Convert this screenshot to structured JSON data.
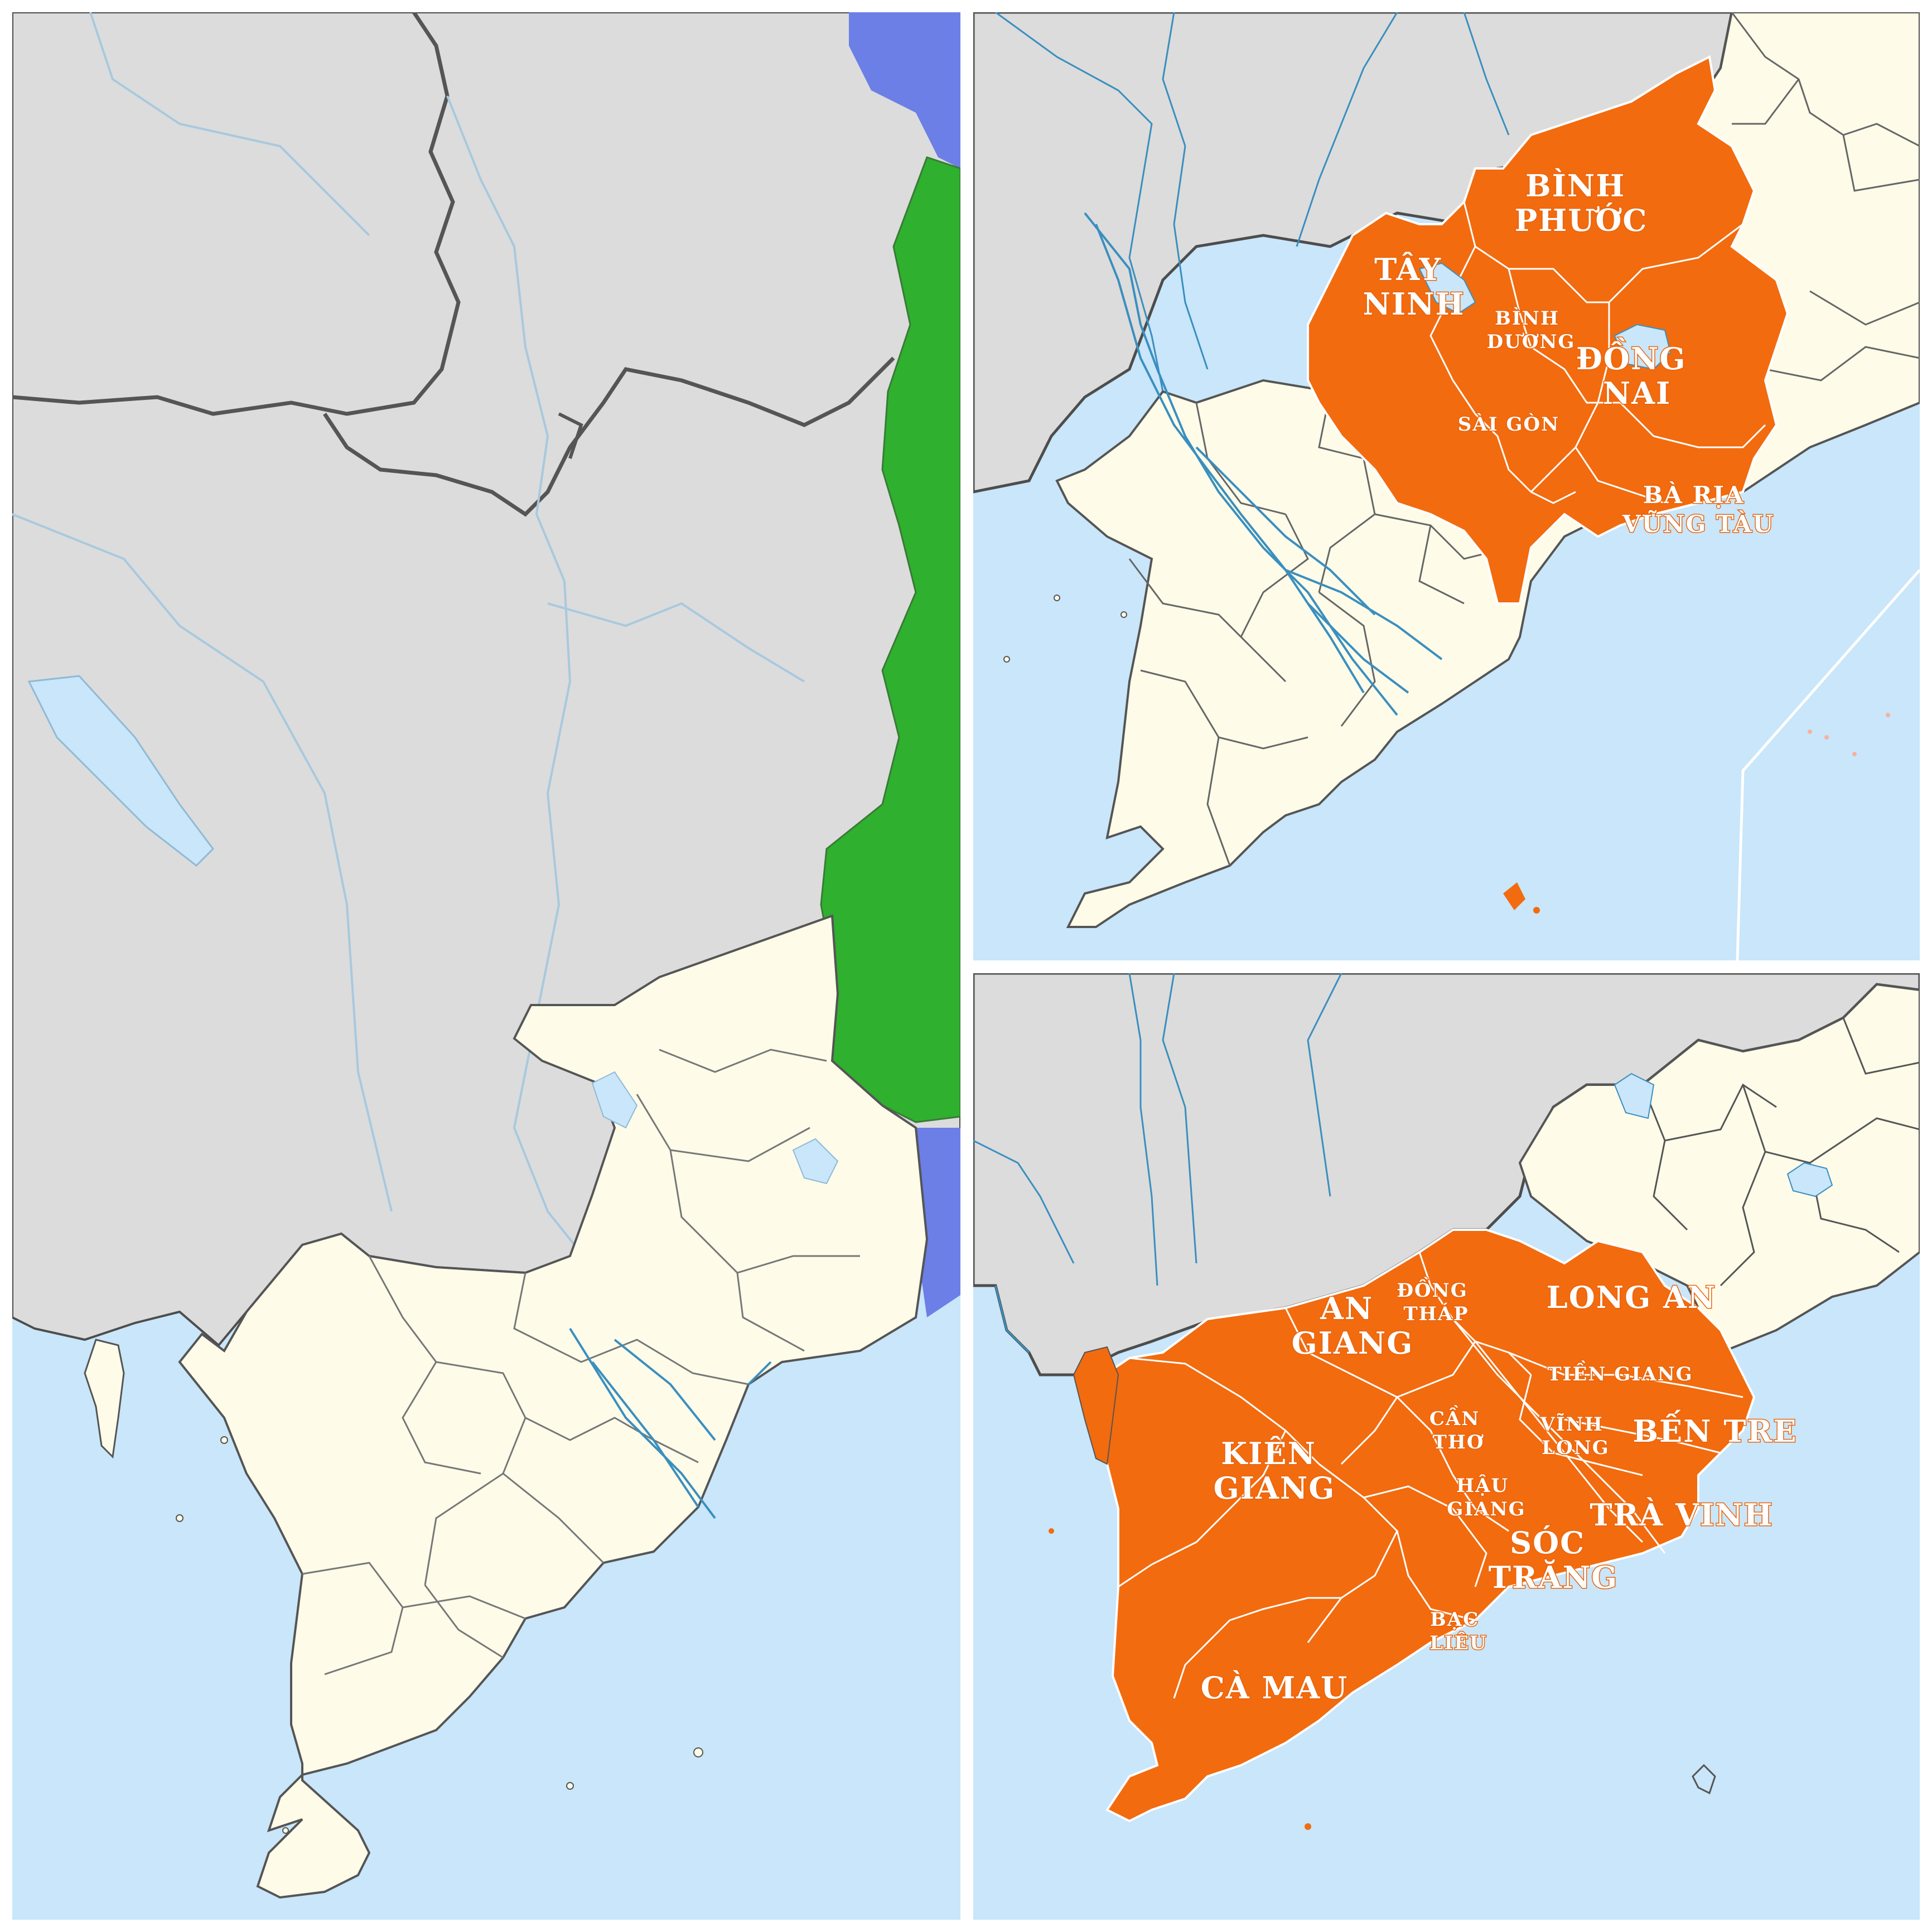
{
  "colors": {
    "sea": "#c9e6fa",
    "foreign_land": "#dcdcdc",
    "vietnam_land": "#fefbe9",
    "highlight": "#f26b0f",
    "laos_blue": "#6b7fe6",
    "central_green": "#2fb02e",
    "river": "#3a8fbf",
    "border": "#5a5a5a"
  },
  "panels": [
    {
      "id": "overview",
      "description_icon": "map-overview-icon"
    },
    {
      "id": "southeast"
    },
    {
      "id": "mekong_delta"
    }
  ],
  "southeast_labels": [
    {
      "id": "binh-phuoc",
      "lines": [
        "BÌNH",
        "PHƯỚC"
      ]
    },
    {
      "id": "tay-ninh",
      "lines": [
        "TÂY",
        "NINH"
      ]
    },
    {
      "id": "binh-duong",
      "lines": [
        "BÌNH",
        "DƯƠNG"
      ]
    },
    {
      "id": "dong-nai",
      "lines": [
        "ĐỒNG",
        "NAI"
      ]
    },
    {
      "id": "sai-gon",
      "lines": [
        "SÀI GÒN"
      ]
    },
    {
      "id": "ba-ria-vung-tau",
      "lines": [
        "BÀ RỊA",
        "VŨNG TÀU"
      ]
    }
  ],
  "mekong_labels": [
    {
      "id": "an-giang",
      "lines": [
        "AN",
        "GIANG"
      ]
    },
    {
      "id": "dong-thap",
      "lines": [
        "ĐỒNG",
        "THÁP"
      ]
    },
    {
      "id": "long-an",
      "lines": [
        "LONG AN"
      ]
    },
    {
      "id": "tien-giang",
      "lines": [
        "TIỀN GIANG"
      ]
    },
    {
      "id": "can-tho",
      "lines": [
        "CẦN",
        "THƠ"
      ]
    },
    {
      "id": "vinh-long",
      "lines": [
        "VĨNH",
        "LONG"
      ]
    },
    {
      "id": "ben-tre",
      "lines": [
        "BẾN TRE"
      ]
    },
    {
      "id": "kien-giang",
      "lines": [
        "KIÊN",
        "GIANG"
      ]
    },
    {
      "id": "hau-giang",
      "lines": [
        "HẬU",
        "GIANG"
      ]
    },
    {
      "id": "tra-vinh",
      "lines": [
        "TRÀ VINH"
      ]
    },
    {
      "id": "soc-trang",
      "lines": [
        "SÓC",
        "TRĂNG"
      ]
    },
    {
      "id": "bac-lieu",
      "lines": [
        "BẠC",
        "LIÊU"
      ]
    },
    {
      "id": "ca-mau",
      "lines": [
        "CÀ MAU"
      ]
    }
  ]
}
